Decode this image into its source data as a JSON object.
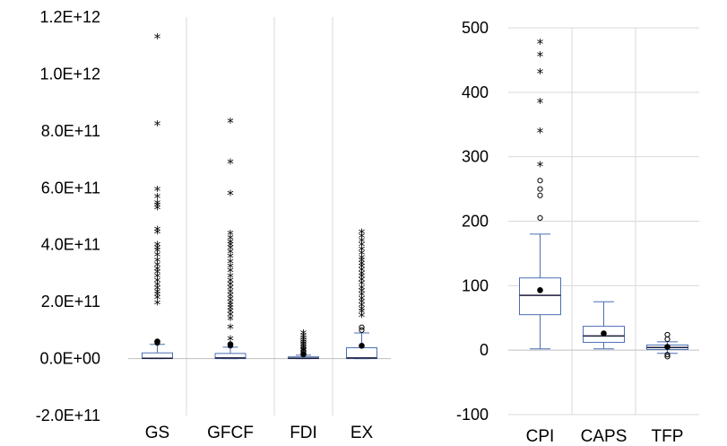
{
  "chart_data": [
    {
      "type": "box",
      "ylim": [
        -200000000000,
        1200000000000
      ],
      "yticks": [
        "-2.0E+11",
        "0.0E+00",
        "2.0E+11",
        "4.0E+11",
        "6.0E+11",
        "8.0E+11",
        "1.0E+12",
        "1.2E+12"
      ],
      "ytick_values": [
        -200000000000,
        0,
        200000000000,
        400000000000,
        600000000000,
        800000000000,
        1000000000000,
        1200000000000
      ],
      "grid": "vertical category separators",
      "categories": [
        "GS",
        "GFCF",
        "FDI",
        "EX"
      ],
      "boxes": [
        {
          "name": "GS",
          "q1": 0,
          "median": 1000000000,
          "q3": 20000000000,
          "whisker_low": 0,
          "whisker_high": 50000000000,
          "mean": 60000000000,
          "mild_outliers": [
            55000000000
          ],
          "extreme_outliers": [
            1130000000000,
            825000000000,
            595000000000,
            570000000000,
            548000000000,
            540000000000,
            530000000000,
            455000000000,
            445000000000,
            400000000000,
            390000000000,
            380000000000,
            365000000000,
            345000000000,
            330000000000,
            315000000000,
            305000000000,
            290000000000,
            275000000000,
            260000000000,
            248000000000,
            235000000000,
            225000000000,
            215000000000,
            195000000000
          ]
        },
        {
          "name": "GFCF",
          "q1": 0,
          "median": 2000000000,
          "q3": 18000000000,
          "whisker_low": 0,
          "whisker_high": 40000000000,
          "mean": 50000000000,
          "mild_outliers": [
            45000000000
          ],
          "extreme_outliers": [
            835000000000,
            690000000000,
            580000000000,
            440000000000,
            425000000000,
            410000000000,
            400000000000,
            390000000000,
            375000000000,
            360000000000,
            340000000000,
            325000000000,
            310000000000,
            290000000000,
            275000000000,
            262000000000,
            250000000000,
            235000000000,
            222000000000,
            210000000000,
            198000000000,
            188000000000,
            178000000000,
            168000000000,
            155000000000,
            140000000000,
            110000000000,
            70000000000
          ]
        },
        {
          "name": "FDI",
          "q1": 0,
          "median": 1000000000,
          "q3": 6000000000,
          "whisker_low": 0,
          "whisker_high": 12000000000,
          "mean": 15000000000,
          "mild_outliers": [
            20000000000,
            25000000000
          ],
          "extreme_outliers": [
            90000000000,
            80000000000,
            72000000000,
            65000000000,
            58000000000,
            52000000000,
            47000000000,
            42000000000,
            37000000000,
            32000000000,
            28000000000
          ]
        },
        {
          "name": "EX",
          "q1": 0,
          "median": 2000000000,
          "q3": 38000000000,
          "whisker_low": 0,
          "whisker_high": 90000000000,
          "mean": 45000000000,
          "mild_outliers": [
            100000000000,
            110000000000
          ],
          "extreme_outliers": [
            445000000000,
            430000000000,
            415000000000,
            400000000000,
            385000000000,
            370000000000,
            355000000000,
            345000000000,
            335000000000,
            325000000000,
            312000000000,
            300000000000,
            290000000000,
            278000000000,
            265000000000,
            250000000000,
            238000000000,
            225000000000,
            212000000000,
            200000000000,
            188000000000,
            175000000000,
            165000000000,
            152000000000
          ]
        }
      ]
    },
    {
      "type": "box",
      "ylim": [
        -100,
        500
      ],
      "yticks": [
        "-100",
        "0",
        "100",
        "200",
        "300",
        "400",
        "500"
      ],
      "ytick_values": [
        -100,
        0,
        100,
        200,
        300,
        400,
        500
      ],
      "grid": "horizontal and vertical",
      "categories": [
        "CPI",
        "CAPS",
        "TFP"
      ],
      "boxes": [
        {
          "name": "CPI",
          "q1": 55,
          "median": 85,
          "q3": 112,
          "whisker_low": 2,
          "whisker_high": 180,
          "mean": 93,
          "mild_outliers": [
            205,
            240,
            250,
            263
          ],
          "extreme_outliers": [
            288,
            340,
            386,
            432,
            458,
            478
          ]
        },
        {
          "name": "CAPS",
          "q1": 12,
          "median": 22,
          "q3": 37,
          "whisker_low": 2,
          "whisker_high": 75,
          "mean": 26,
          "mild_outliers": [],
          "extreme_outliers": []
        },
        {
          "name": "TFP",
          "q1": 1,
          "median": 4,
          "q3": 8,
          "whisker_low": -5,
          "whisker_high": 13,
          "mean": 5,
          "mild_outliers": [
            24,
            17,
            -7,
            -10
          ],
          "extreme_outliers": []
        }
      ]
    }
  ],
  "colors": {
    "box_stroke": "#4a6fb5",
    "median": "#1a1a3a",
    "grid": "#d9d9d9",
    "zero_line": "#bfbfbf",
    "marker": "#000000"
  }
}
